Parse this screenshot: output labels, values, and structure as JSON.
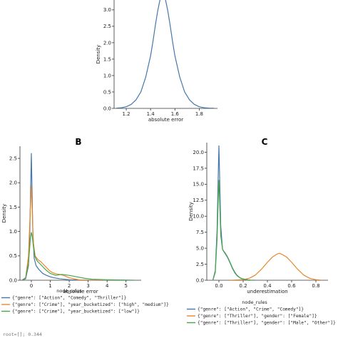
{
  "chart_data": [
    {
      "panel": "",
      "type": "line",
      "xlabel": "absolute error",
      "ylabel": "Density",
      "xlim": [
        1.1,
        1.95
      ],
      "ylim": [
        0,
        3.3
      ],
      "xticks": [
        1.2,
        1.4,
        1.6,
        1.8
      ],
      "xtick_labels": [
        "1.2",
        "1.4",
        "1.6",
        "1.8"
      ],
      "yticks": [
        0,
        0.5,
        1.0,
        1.5,
        2.0,
        2.5,
        3.0
      ],
      "ytick_labels": [
        "0.0",
        "0.5",
        "1.0",
        "1.5",
        "2.0",
        "2.5",
        "3.0"
      ],
      "legend_title": "",
      "series": [
        {
          "color": "#4477aa",
          "x": [
            1.12,
            1.16,
            1.2,
            1.24,
            1.28,
            1.32,
            1.36,
            1.4,
            1.42,
            1.44,
            1.46,
            1.48,
            1.5,
            1.52,
            1.54,
            1.56,
            1.58,
            1.6,
            1.64,
            1.68,
            1.72,
            1.76,
            1.8,
            1.84,
            1.88,
            1.92
          ],
          "y": [
            0.01,
            0.02,
            0.05,
            0.12,
            0.26,
            0.5,
            0.95,
            1.6,
            2.05,
            2.55,
            3.0,
            3.35,
            3.5,
            3.35,
            3.0,
            2.55,
            2.05,
            1.6,
            0.95,
            0.5,
            0.26,
            0.12,
            0.05,
            0.02,
            0.01,
            0.005
          ]
        }
      ]
    },
    {
      "panel": "B",
      "type": "line",
      "xlabel": "absolute error",
      "ylabel": "Density",
      "xlim": [
        -0.6,
        5.8
      ],
      "ylim": [
        0,
        2.75
      ],
      "xticks": [
        0,
        1,
        2,
        3,
        4,
        5
      ],
      "xtick_labels": [
        "0",
        "1",
        "2",
        "3",
        "4",
        "5"
      ],
      "yticks": [
        0,
        0.5,
        1.0,
        1.5,
        2.0,
        2.5
      ],
      "ytick_labels": [
        "0.0",
        "0.5",
        "1.0",
        "1.5",
        "2.0",
        "2.5"
      ],
      "legend_title": "node_rules",
      "series": [
        {
          "name": "{\"genre\": [\"Action\", \"Comedy\", \"Thriller\"]}",
          "color": "#4477aa",
          "x": [
            -0.5,
            -0.3,
            -0.15,
            -0.08,
            -0.03,
            0,
            0.03,
            0.08,
            0.15,
            0.25,
            0.4,
            0.6,
            0.8,
            1.0,
            1.2,
            1.5,
            2.0,
            2.5,
            3.0,
            4.0,
            5.0
          ],
          "y": [
            0.0,
            0.03,
            0.3,
            1.0,
            2.0,
            2.6,
            2.0,
            1.0,
            0.45,
            0.3,
            0.22,
            0.14,
            0.1,
            0.07,
            0.05,
            0.03,
            0.01,
            0.005,
            0.0,
            0.0,
            0.0
          ]
        },
        {
          "name": "{\"genre\": [\"Crime\"], \"year_bucketized\": [\"high\", \"medium\"]}",
          "color": "#e8872a",
          "x": [
            -0.5,
            -0.3,
            -0.15,
            -0.06,
            0,
            0.05,
            0.1,
            0.2,
            0.35,
            0.5,
            0.65,
            0.8,
            0.95,
            1.1,
            1.3,
            1.5,
            1.7,
            2.0,
            2.5,
            3.0,
            4.0
          ],
          "y": [
            0.0,
            0.05,
            0.5,
            1.4,
            1.95,
            1.4,
            0.8,
            0.5,
            0.42,
            0.38,
            0.32,
            0.26,
            0.2,
            0.16,
            0.13,
            0.12,
            0.1,
            0.05,
            0.01,
            0.0,
            0.0
          ]
        },
        {
          "name": "{\"genre\": [\"Crime\"], \"year_bucketized\": [\"low\"]}",
          "color": "#4aa54a",
          "x": [
            -0.5,
            -0.3,
            -0.15,
            -0.05,
            0,
            0.05,
            0.12,
            0.2,
            0.3,
            0.45,
            0.6,
            0.8,
            1.0,
            1.3,
            1.6,
            2.0,
            2.4,
            2.8,
            3.2,
            4.0,
            4.8,
            5.5
          ],
          "y": [
            0.0,
            0.05,
            0.35,
            0.85,
            0.98,
            0.9,
            0.65,
            0.48,
            0.4,
            0.34,
            0.28,
            0.2,
            0.14,
            0.1,
            0.12,
            0.1,
            0.07,
            0.04,
            0.02,
            0.01,
            0.005,
            0.0
          ]
        }
      ]
    },
    {
      "panel": "C",
      "type": "line",
      "xlabel": "underestimation",
      "ylabel": "Density",
      "xlim": [
        -0.1,
        0.9
      ],
      "ylim": [
        0,
        21.5
      ],
      "xticks": [
        0.0,
        0.2,
        0.4,
        0.6,
        0.8
      ],
      "xtick_labels": [
        "0.0",
        "0.2",
        "0.4",
        "0.6",
        "0.8"
      ],
      "yticks": [
        0,
        2.5,
        5.0,
        7.5,
        10.0,
        12.5,
        15.0,
        17.5,
        20.0
      ],
      "ytick_labels": [
        "0.0",
        "2.5",
        "5.0",
        "7.5",
        "10.0",
        "12.5",
        "15.0",
        "17.5",
        "20.0"
      ],
      "legend_title": "node_rules",
      "series": [
        {
          "name": "{\"genre\": [\"Action\", \"Crime\", \"Comedy\"]}",
          "color": "#4477aa",
          "x": [
            -0.05,
            -0.03,
            -0.015,
            -0.005,
            0,
            0.005,
            0.015,
            0.03,
            0.05,
            0.07,
            0.09,
            0.11,
            0.13,
            0.15,
            0.18,
            0.22,
            0.26,
            0.3
          ],
          "y": [
            0.0,
            1.5,
            8.0,
            17.0,
            21.0,
            17.0,
            8.5,
            4.8,
            4.2,
            3.6,
            2.8,
            1.9,
            1.2,
            0.7,
            0.3,
            0.1,
            0.02,
            0.0
          ]
        },
        {
          "name": "{\"genre\": [\"Thriller\"], \"gender\": [\"Female\"]}",
          "color": "#e8872a",
          "x": [
            0.1,
            0.2,
            0.25,
            0.3,
            0.35,
            0.4,
            0.44,
            0.48,
            0.5,
            0.52,
            0.56,
            0.6,
            0.65,
            0.7,
            0.75,
            0.8,
            0.85
          ],
          "y": [
            0.0,
            0.1,
            0.3,
            0.8,
            1.7,
            2.8,
            3.6,
            4.1,
            4.2,
            4.05,
            3.6,
            2.8,
            1.7,
            0.8,
            0.3,
            0.08,
            0.0
          ]
        },
        {
          "name": "{\"genre\": [\"Thriller\"], \"gender\": [\"Male\", \"Other\"]}",
          "color": "#4aa54a",
          "x": [
            -0.05,
            -0.03,
            -0.015,
            -0.005,
            0,
            0.005,
            0.015,
            0.03,
            0.05,
            0.07,
            0.09,
            0.11,
            0.13,
            0.15,
            0.18,
            0.22,
            0.26,
            0.3
          ],
          "y": [
            0.0,
            1.2,
            6.5,
            13.0,
            15.6,
            13.0,
            7.0,
            4.8,
            4.3,
            3.7,
            2.9,
            2.0,
            1.3,
            0.75,
            0.32,
            0.1,
            0.02,
            0.0
          ]
        }
      ]
    }
  ],
  "footer": {
    "text": "root=[]; 0.344"
  }
}
